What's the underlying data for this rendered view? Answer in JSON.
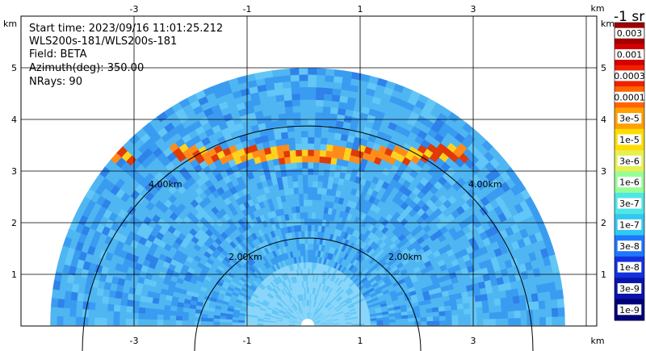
{
  "info": {
    "start_time": "Start time: 2023/09/16 11:01:25.212",
    "instrument": "WLS200s-181/WLS200s-181",
    "field": "Field: BETA",
    "azimuth": "Azimuth(deg): 350.00",
    "nrays": "NRays: 90"
  },
  "axes": {
    "unit": "km",
    "x_ticks": [
      "-3",
      "-1",
      "1",
      "3"
    ],
    "y_ticks": [
      "1",
      "2",
      "3",
      "4",
      "5"
    ],
    "ring_labels": [
      "2.00km",
      "2.00km",
      "4.00km",
      "4.00km"
    ]
  },
  "colorbar": {
    "title": "-1 sr",
    "labels": [
      "0.003",
      "0.001",
      "0.0003",
      "0.0001",
      "3e-5",
      "1e-5",
      "3e-6",
      "1e-6",
      "3e-7",
      "1e-7",
      "3e-8",
      "1e-8",
      "3e-9",
      "1e-9"
    ],
    "colors": [
      "#a00000",
      "#d40000",
      "#f02000",
      "#ff6400",
      "#ffa000",
      "#ffdc00",
      "#e6f050",
      "#96ff96",
      "#50e6e6",
      "#32c8f0",
      "#1e78ff",
      "#1432dc",
      "#0a14aa",
      "#000078"
    ]
  },
  "scan": {
    "type": "RHI sector",
    "background_colors": [
      "#4fb6f2",
      "#3a9cf0",
      "#62c6f6",
      "#2e82ea"
    ],
    "near_range_color": "#8ad6fa",
    "cloud_color": "#ff8c1a",
    "cloud_core_color": "#e03a08"
  }
}
